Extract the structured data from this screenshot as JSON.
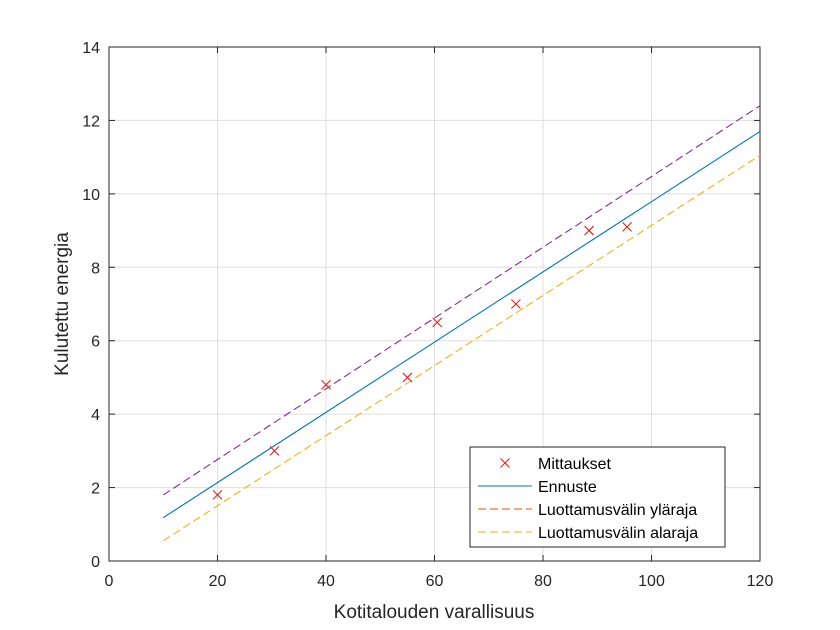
{
  "chart_data": {
    "type": "scatter",
    "xlabel": "Kotitalouden varallisuus",
    "ylabel": "Kulutettu energia",
    "xlim": [
      0,
      120
    ],
    "ylim": [
      0,
      14
    ],
    "x_ticks": [
      "0",
      "20",
      "40",
      "60",
      "80",
      "100",
      "120"
    ],
    "y_ticks": [
      "0",
      "2",
      "4",
      "6",
      "8",
      "10",
      "12",
      "14"
    ],
    "x_tick_values": [
      0,
      20,
      40,
      60,
      80,
      100,
      120
    ],
    "y_tick_values": [
      0,
      2,
      4,
      6,
      8,
      10,
      12,
      14
    ],
    "grid": true,
    "legend_position": "bottom-right",
    "series": [
      {
        "name": "Mittaukset",
        "kind": "marker",
        "marker": "x",
        "color": "#e0201b",
        "x": [
          20,
          30.5,
          40,
          55,
          60.5,
          75,
          88.5,
          95.5
        ],
        "y": [
          1.8,
          3.0,
          4.8,
          5.0,
          6.5,
          7.0,
          9.0,
          9.1
        ]
      },
      {
        "name": "Ennuste",
        "kind": "line",
        "dash": "solid",
        "color": "#0072bd",
        "x": [
          10,
          120
        ],
        "y": [
          1.18,
          11.7
        ]
      },
      {
        "name": "Luottamusvälin yläraja",
        "kind": "line",
        "dash": "dashed",
        "color": "#d95319",
        "plot_color": "#7e2f8e",
        "x": [
          10,
          120
        ],
        "y": [
          1.8,
          12.4
        ]
      },
      {
        "name": "Luottamusvälin alaraja",
        "kind": "line",
        "dash": "dashed",
        "color": "#edb120",
        "x": [
          10,
          120
        ],
        "y": [
          0.55,
          11.05
        ]
      }
    ]
  }
}
